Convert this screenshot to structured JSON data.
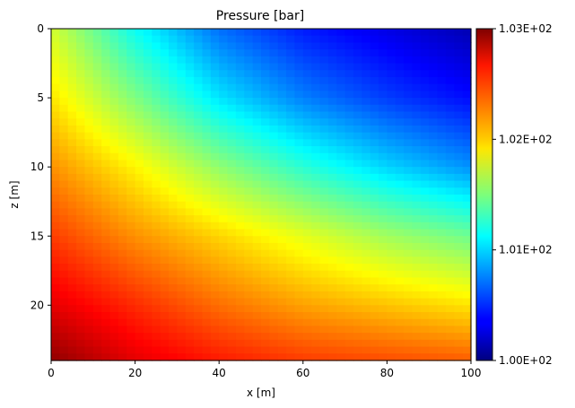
{
  "chart_data": {
    "type": "heatmap",
    "title": "Pressure [bar]",
    "xlabel": "x [m]",
    "ylabel": "z [m]",
    "xlim": [
      0,
      100
    ],
    "ylim": [
      24,
      0
    ],
    "x_ticks": [
      "0",
      "20",
      "40",
      "60",
      "80",
      "100"
    ],
    "y_ticks": [
      "0",
      "5",
      "10",
      "15",
      "20"
    ],
    "colorbar": {
      "colormap": "jet",
      "range": [
        100.0,
        103.0
      ],
      "ticks": [
        "1.00E+02",
        "1.01E+02",
        "1.02E+02",
        "1.03E+02"
      ]
    },
    "grid": false,
    "cells": {
      "nx": 50,
      "nz": 48
    },
    "field_samples": {
      "x": [
        0,
        20,
        40,
        60,
        80,
        100
      ],
      "z": [
        0,
        5,
        10,
        15,
        20,
        24
      ],
      "values": [
        [
          101.75,
          101.15,
          100.7,
          100.45,
          100.3,
          100.15
        ],
        [
          101.95,
          101.5,
          101.05,
          100.75,
          100.55,
          100.4
        ],
        [
          102.2,
          101.9,
          101.55,
          101.25,
          101.0,
          100.8
        ],
        [
          102.45,
          102.2,
          102.0,
          101.8,
          101.6,
          101.45
        ],
        [
          102.7,
          102.5,
          102.3,
          102.15,
          102.05,
          101.95
        ],
        [
          102.95,
          102.7,
          102.55,
          102.45,
          102.4,
          102.35
        ]
      ]
    }
  }
}
